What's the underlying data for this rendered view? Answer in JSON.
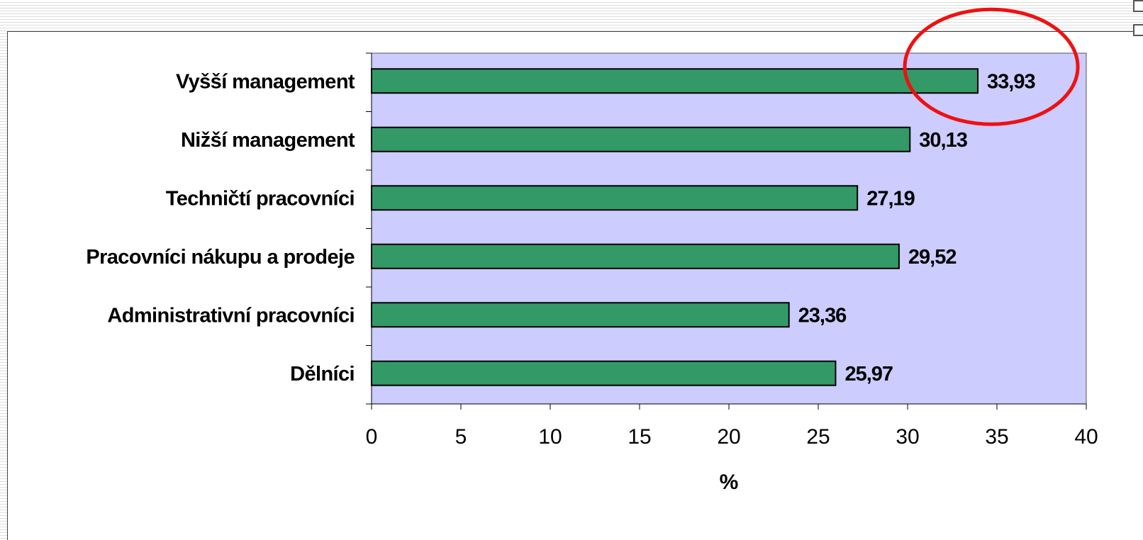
{
  "chart_data": {
    "type": "bar",
    "orientation": "horizontal",
    "categories": [
      "Vyšší management",
      "Nižší management",
      "Techničtí pracovníci",
      "Pracovníci nákupu a prodeje",
      "Administrativní pracovníci",
      "Dělníci"
    ],
    "values": [
      33.93,
      30.13,
      27.19,
      29.52,
      23.36,
      25.97
    ],
    "data_labels": [
      "33,93",
      "30,13",
      "27,19",
      "29,52",
      "23,36",
      "25,97"
    ],
    "xlim": [
      0,
      40
    ],
    "x_ticks": [
      "0",
      "5",
      "10",
      "15",
      "20",
      "25",
      "30",
      "35",
      "40"
    ],
    "xlabel": "%",
    "highlight_category": "Vyšší management",
    "grid": false,
    "colors": {
      "bar_fill": "#339966",
      "bar_stroke": "#000000",
      "plot_background": "#ccccff",
      "highlight_ellipse": "#ee1111"
    }
  }
}
